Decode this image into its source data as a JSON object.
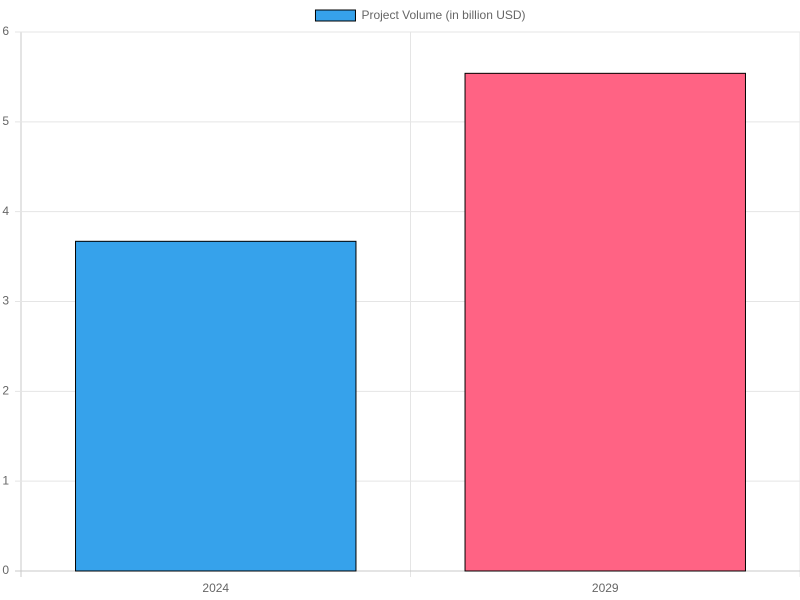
{
  "chart_data": {
    "type": "bar",
    "categories": [
      "2024",
      "2029"
    ],
    "series": [
      {
        "name": "Project Volume (in billion USD)",
        "colors": [
          "#36a2eb",
          "#ff6384"
        ],
        "border_color": "#000000",
        "values": [
          3.67,
          5.54
        ]
      }
    ],
    "ylim": [
      0,
      6
    ],
    "yticks": [
      0,
      1,
      2,
      3,
      4,
      5,
      6
    ],
    "grid": true,
    "legend": "top"
  }
}
